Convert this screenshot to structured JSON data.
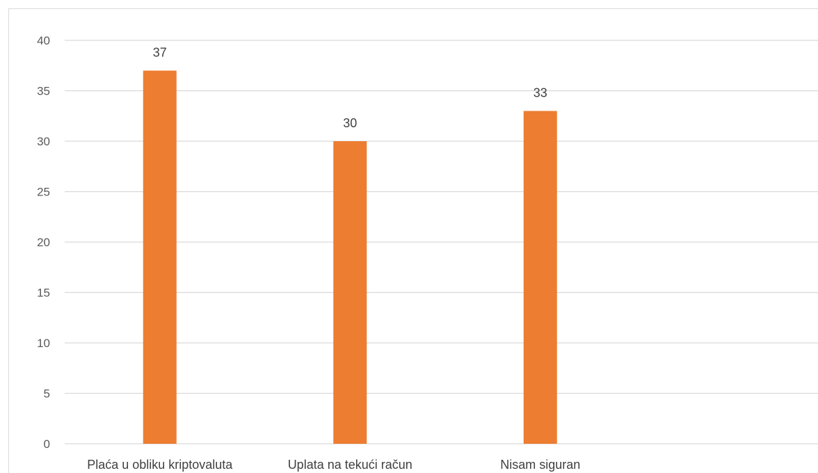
{
  "chart_data": {
    "type": "bar",
    "title": "",
    "xlabel": "",
    "ylabel": "",
    "categories": [
      "Plaća u obliku kriptovaluta",
      "Uplata na tekući račun",
      "Nisam siguran"
    ],
    "values": [
      37,
      30,
      33
    ],
    "data_labels": [
      "37",
      "30",
      "33"
    ],
    "ylim": [
      0,
      40
    ],
    "yticks": [
      0,
      5,
      10,
      15,
      20,
      25,
      30,
      35,
      40
    ],
    "grid": true,
    "legend": "none",
    "bar_color": "#ED7D31"
  }
}
